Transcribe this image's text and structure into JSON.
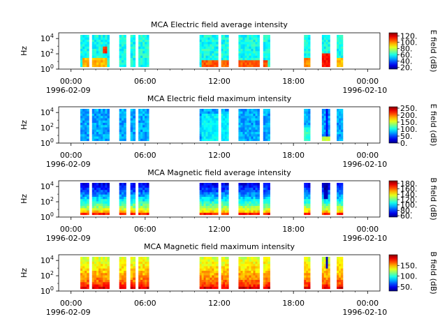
{
  "figure": {
    "date_start": "1996-02-09",
    "date_end": "1996-02-10"
  },
  "chart_data": [
    {
      "type": "heatmap",
      "title": "MCA  Electric field average intensity",
      "ylabel": "Hz",
      "y_scale": "log",
      "ylim": [
        1,
        56234
      ],
      "y_ticks": [
        {
          "exp": "0"
        },
        {
          "exp": "2"
        },
        {
          "exp": "4"
        }
      ],
      "x_ticks": [
        "00:00",
        "06:00",
        "12:00",
        "18:00",
        "00:00"
      ],
      "x_tick_hours": [
        0,
        6,
        12,
        18,
        24
      ],
      "xlim_hours": [
        -1,
        25
      ],
      "colorbar": {
        "label": "E field (dB)",
        "range": [
          15,
          130
        ],
        "ticks": [
          20,
          40,
          60,
          80,
          100,
          120
        ],
        "tick_labels": [
          "20.",
          "40.",
          "60.",
          "80.",
          "100.",
          "120."
        ]
      },
      "base_dB": 60,
      "segments_hours": [
        [
          0.75,
          1.45
        ],
        [
          1.7,
          3.1
        ],
        [
          3.9,
          4.45
        ],
        [
          4.8,
          5.2
        ],
        [
          5.45,
          6.3
        ],
        [
          10.4,
          11.9
        ],
        [
          12.15,
          12.75
        ],
        [
          13.55,
          15.25
        ],
        [
          15.55,
          16.1
        ],
        [
          18.85,
          19.35
        ],
        [
          20.3,
          20.95
        ],
        [
          21.5,
          22.0
        ]
      ],
      "features": [
        {
          "x": [
            1.0,
            3.0
          ],
          "f": [
            1,
            30
          ],
          "dB": 95
        },
        {
          "x": [
            10.5,
            16.0
          ],
          "f": [
            1,
            20
          ],
          "dB": 105
        },
        {
          "x": [
            18.9,
            19.3
          ],
          "f": [
            1,
            30
          ],
          "dB": 100
        },
        {
          "x": [
            20.35,
            20.9
          ],
          "f": [
            1,
            100
          ],
          "dB": 115
        },
        {
          "x": [
            21.5,
            22.0
          ],
          "f": [
            1,
            30
          ],
          "dB": 95
        },
        {
          "x": [
            2.5,
            3.0
          ],
          "f": [
            100,
            1000
          ],
          "dB": 110
        }
      ]
    },
    {
      "type": "heatmap",
      "title": "MCA  Electric field maximum intensity",
      "ylabel": "Hz",
      "y_scale": "log",
      "ylim": [
        1,
        56234
      ],
      "y_ticks": [
        {
          "exp": "0"
        },
        {
          "exp": "2"
        },
        {
          "exp": "4"
        }
      ],
      "x_ticks": [
        "00:00",
        "06:00",
        "12:00",
        "18:00",
        "00:00"
      ],
      "x_tick_hours": [
        0,
        6,
        12,
        18,
        24
      ],
      "xlim_hours": [
        -1,
        25
      ],
      "colorbar": {
        "label": "E field (dB)",
        "range": [
          0,
          260
        ],
        "ticks": [
          0,
          50,
          100,
          150,
          200,
          250
        ],
        "tick_labels": [
          "0.",
          "50.",
          "100.",
          "150.",
          "200.",
          "250."
        ]
      },
      "base_dB": 75,
      "segments_hours": [
        [
          0.75,
          1.45
        ],
        [
          1.7,
          3.1
        ],
        [
          3.9,
          4.45
        ],
        [
          4.8,
          5.2
        ],
        [
          5.45,
          6.3
        ],
        [
          10.4,
          11.9
        ],
        [
          12.15,
          12.75
        ],
        [
          13.55,
          15.25
        ],
        [
          15.55,
          16.1
        ],
        [
          18.85,
          19.35
        ],
        [
          20.3,
          20.95
        ],
        [
          21.5,
          22.0
        ]
      ],
      "features": [
        {
          "x": [
            10.5,
            12.7
          ],
          "f": [
            1,
            10000
          ],
          "dB": 95
        },
        {
          "x": [
            18.9,
            19.3
          ],
          "f": [
            1,
            100
          ],
          "dB": 110
        },
        {
          "x": [
            20.55,
            20.75
          ],
          "f": [
            1,
            30000
          ],
          "dB": 30
        },
        {
          "x": [
            20.35,
            20.9
          ],
          "f": [
            1,
            10
          ],
          "dB": 150
        }
      ]
    },
    {
      "type": "heatmap",
      "title": "MCA  Magnetic field average intensity",
      "ylabel": "Hz",
      "y_scale": "log",
      "ylim": [
        1,
        56234
      ],
      "y_ticks": [
        {
          "exp": "0"
        },
        {
          "exp": "2"
        },
        {
          "exp": "4"
        }
      ],
      "x_ticks": [
        "00:00",
        "06:00",
        "12:00",
        "18:00",
        "00:00"
      ],
      "x_tick_hours": [
        0,
        6,
        12,
        18,
        24
      ],
      "xlim_hours": [
        -1,
        25
      ],
      "colorbar": {
        "label": "B field (dB)",
        "range": [
          55,
          190
        ],
        "ticks": [
          60,
          80,
          100,
          120,
          140,
          160,
          180
        ],
        "tick_labels": [
          "60.",
          "80.",
          "100.",
          "120.",
          "140.",
          "160.",
          "180."
        ]
      },
      "base_dB": 100,
      "low_freq_dB": 170,
      "high_freq_dB": 70,
      "segments_hours": [
        [
          0.75,
          1.45
        ],
        [
          1.7,
          3.1
        ],
        [
          3.9,
          4.45
        ],
        [
          4.8,
          5.2
        ],
        [
          5.45,
          6.3
        ],
        [
          10.4,
          11.9
        ],
        [
          12.15,
          12.75
        ],
        [
          13.55,
          15.25
        ],
        [
          15.55,
          16.1
        ],
        [
          18.85,
          19.35
        ],
        [
          20.3,
          20.95
        ],
        [
          21.5,
          22.0
        ]
      ],
      "features": [
        {
          "x": [
            20.5,
            20.8
          ],
          "f": [
            300,
            30000
          ],
          "dB": 60
        }
      ]
    },
    {
      "type": "heatmap",
      "title": "MCA  Magnetic field maximum intensity",
      "ylabel": "Hz",
      "y_scale": "log",
      "ylim": [
        1,
        56234
      ],
      "y_ticks": [
        {
          "exp": "0"
        },
        {
          "exp": "2"
        },
        {
          "exp": "4"
        }
      ],
      "x_ticks": [
        "00:00",
        "06:00",
        "12:00",
        "18:00",
        "00:00"
      ],
      "x_tick_hours": [
        0,
        6,
        12,
        18,
        24
      ],
      "xlim_hours": [
        -1,
        25
      ],
      "colorbar": {
        "label": "B field (dB)",
        "range": [
          30,
          200
        ],
        "ticks": [
          50,
          100,
          150
        ],
        "tick_labels": [
          "50.",
          "100.",
          "150."
        ]
      },
      "base_dB": 125,
      "low_freq_dB": 185,
      "high_freq_dB": 130,
      "segments_hours": [
        [
          0.75,
          1.45
        ],
        [
          1.7,
          3.1
        ],
        [
          3.9,
          4.45
        ],
        [
          4.8,
          5.2
        ],
        [
          5.45,
          6.3
        ],
        [
          10.4,
          11.9
        ],
        [
          12.15,
          12.75
        ],
        [
          13.55,
          15.25
        ],
        [
          15.55,
          16.1
        ],
        [
          18.85,
          19.35
        ],
        [
          20.3,
          20.95
        ],
        [
          21.5,
          22.0
        ]
      ],
      "features": [
        {
          "x": [
            20.55,
            20.75
          ],
          "f": [
            1000,
            30000
          ],
          "dB": 40
        }
      ]
    }
  ]
}
